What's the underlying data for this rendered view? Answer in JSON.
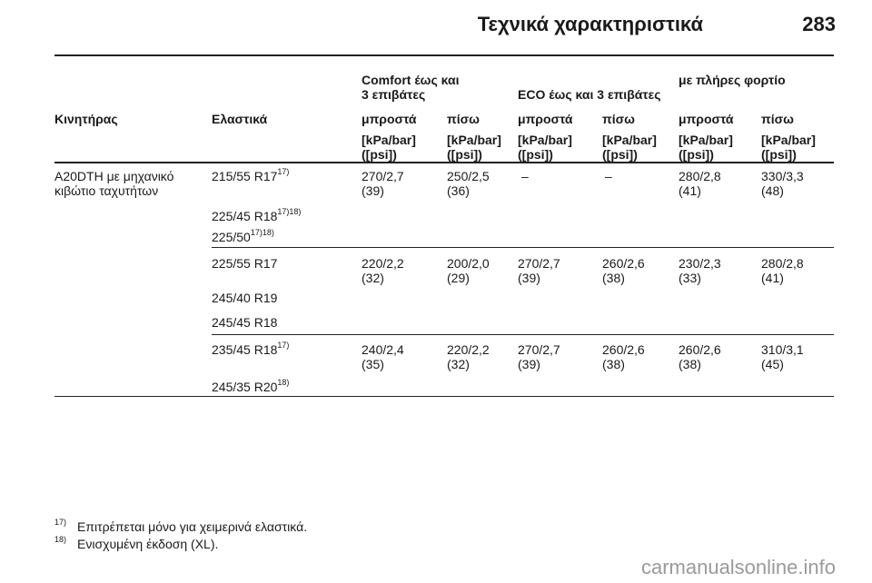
{
  "header": {
    "title": "Τεχνικά χαρακτηριστικά",
    "page": "283"
  },
  "table": {
    "groups": {
      "comfort_line1": "Comfort έως και",
      "comfort_line2": "3 επιβάτες",
      "eco": "ECO έως και 3 επιβάτες",
      "full": "με πλήρες φορτίο"
    },
    "columns": {
      "engine": "Κινητήρας",
      "tyres": "Ελαστικά",
      "front": "μπροστά",
      "rear": "πίσω"
    },
    "units": {
      "line1": "[kPa/bar]",
      "line2": "([psi])"
    },
    "engine": {
      "line1": "A20DTH με μηχανικό",
      "line2": "κιβώτιο ταχυτήτων"
    },
    "rows": [
      {
        "tyres": [
          {
            "name": "215/55 R17",
            "sup": "17)"
          },
          {
            "name": "225/45 R18",
            "sup": "17)18)"
          },
          {
            "name": "225/50",
            "sup": "17)18)"
          }
        ],
        "values": [
          [
            "270/2,7",
            "(39)"
          ],
          [
            "250/2,5",
            "(36)"
          ],
          [
            "–",
            ""
          ],
          [
            "–",
            ""
          ],
          [
            "280/2,8",
            "(41)"
          ],
          [
            "330/3,3",
            "(48)"
          ]
        ]
      },
      {
        "tyres": [
          {
            "name": "225/55 R17",
            "sup": ""
          },
          {
            "name": "245/40 R19",
            "sup": ""
          },
          {
            "name": "245/45 R18",
            "sup": ""
          }
        ],
        "values": [
          [
            "220/2,2",
            "(32)"
          ],
          [
            "200/2,0",
            "(29)"
          ],
          [
            "270/2,7",
            "(39)"
          ],
          [
            "260/2,6",
            "(38)"
          ],
          [
            "230/2,3",
            "(33)"
          ],
          [
            "280/2,8",
            "(41)"
          ]
        ]
      },
      {
        "tyres": [
          {
            "name": "235/45 R18",
            "sup": "17)"
          },
          {
            "name": "245/35 R20",
            "sup": "18)"
          }
        ],
        "values": [
          [
            "240/2,4",
            "(35)"
          ],
          [
            "220/2,2",
            "(32)"
          ],
          [
            "270/2,7",
            "(39)"
          ],
          [
            "260/2,6",
            "(38)"
          ],
          [
            "260/2,6",
            "(38)"
          ],
          [
            "310/3,1",
            "(45)"
          ]
        ]
      }
    ]
  },
  "footnotes": [
    {
      "num": "17)",
      "text": "Επιτρέπεται μόνο για χειμερινά ελαστικά."
    },
    {
      "num": "18)",
      "text": "Ενισχυμένη έκδοση (XL)."
    }
  ],
  "watermark": "carmanualsonline.info"
}
